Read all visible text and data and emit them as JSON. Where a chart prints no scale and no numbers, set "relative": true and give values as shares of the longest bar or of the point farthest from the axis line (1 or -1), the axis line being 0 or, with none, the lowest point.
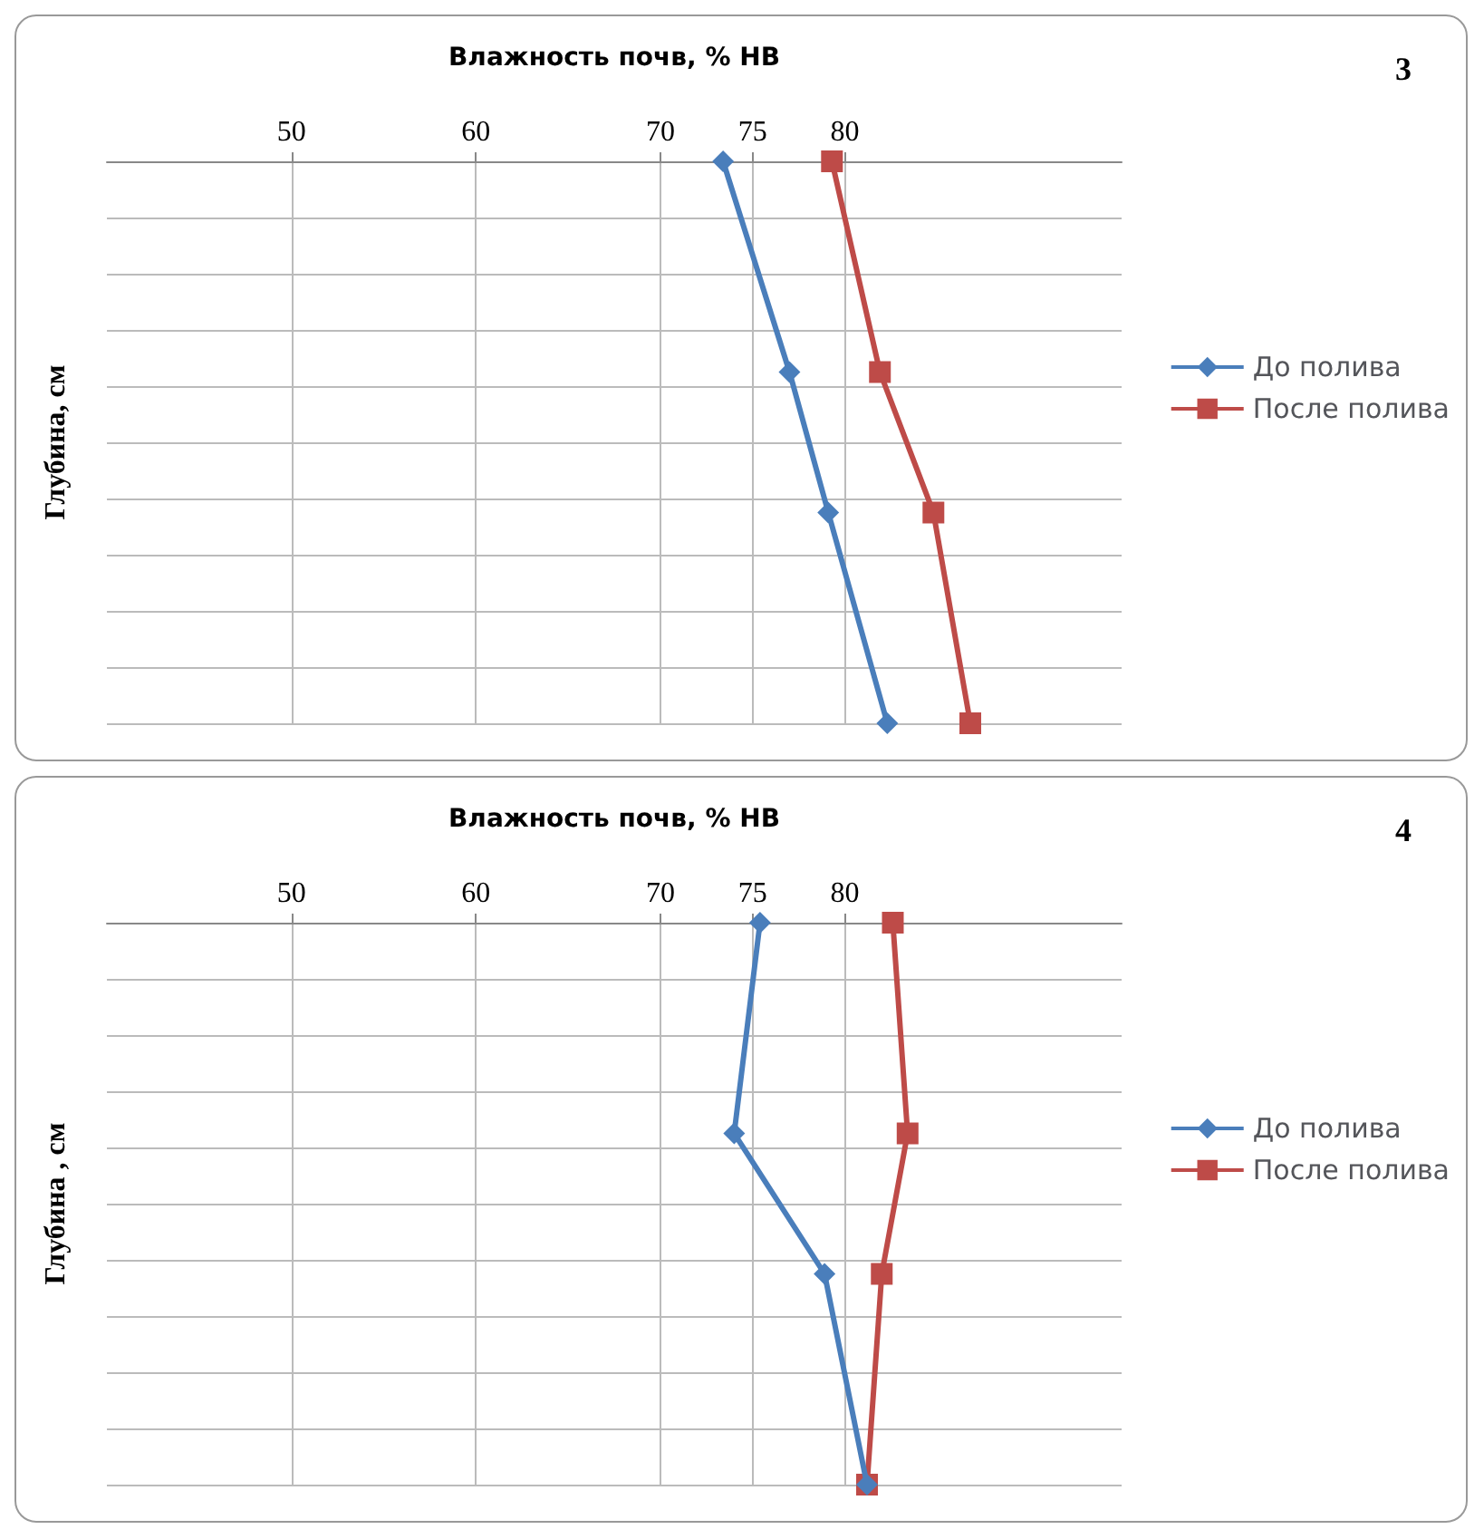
{
  "chart_data": [
    {
      "type": "line",
      "xlabel": "Влажность почв, % НВ",
      "ylabel": "Глубина, см",
      "relative": true,
      "xlim": [
        40,
        95
      ],
      "xticks": [
        50,
        60,
        70,
        75,
        80
      ],
      "grid": true,
      "legend": "right",
      "annotations": [
        "3"
      ],
      "series": [
        {
          "name": "До полива",
          "color": "#4a7ebb",
          "marker": "diamond",
          "x": [
            73.4,
            77.0,
            79.1,
            82.3
          ],
          "values": [
            0,
            -0.375,
            -0.625,
            -1
          ]
        },
        {
          "name": "После полива",
          "color": "#be4b48",
          "marker": "square",
          "x": [
            79.3,
            81.9,
            84.8,
            86.8
          ],
          "values": [
            0,
            -0.375,
            -0.625,
            -1
          ]
        }
      ]
    },
    {
      "type": "line",
      "xlabel": "Влажность почв, % НВ",
      "ylabel": "Глубина , см",
      "relative": true,
      "xlim": [
        40,
        95
      ],
      "xticks": [
        50,
        60,
        70,
        75,
        80
      ],
      "grid": true,
      "legend": "right",
      "annotations": [
        "4"
      ],
      "series": [
        {
          "name": "До полива",
          "color": "#4a7ebb",
          "marker": "diamond",
          "x": [
            75.4,
            74.0,
            78.9,
            81.2
          ],
          "values": [
            0,
            -0.375,
            -0.625,
            -1
          ]
        },
        {
          "name": "После полива",
          "color": "#be4b48",
          "marker": "square",
          "x": [
            82.6,
            83.4,
            82.0,
            81.2
          ],
          "values": [
            0,
            -0.375,
            -0.625,
            -1
          ]
        }
      ]
    }
  ]
}
